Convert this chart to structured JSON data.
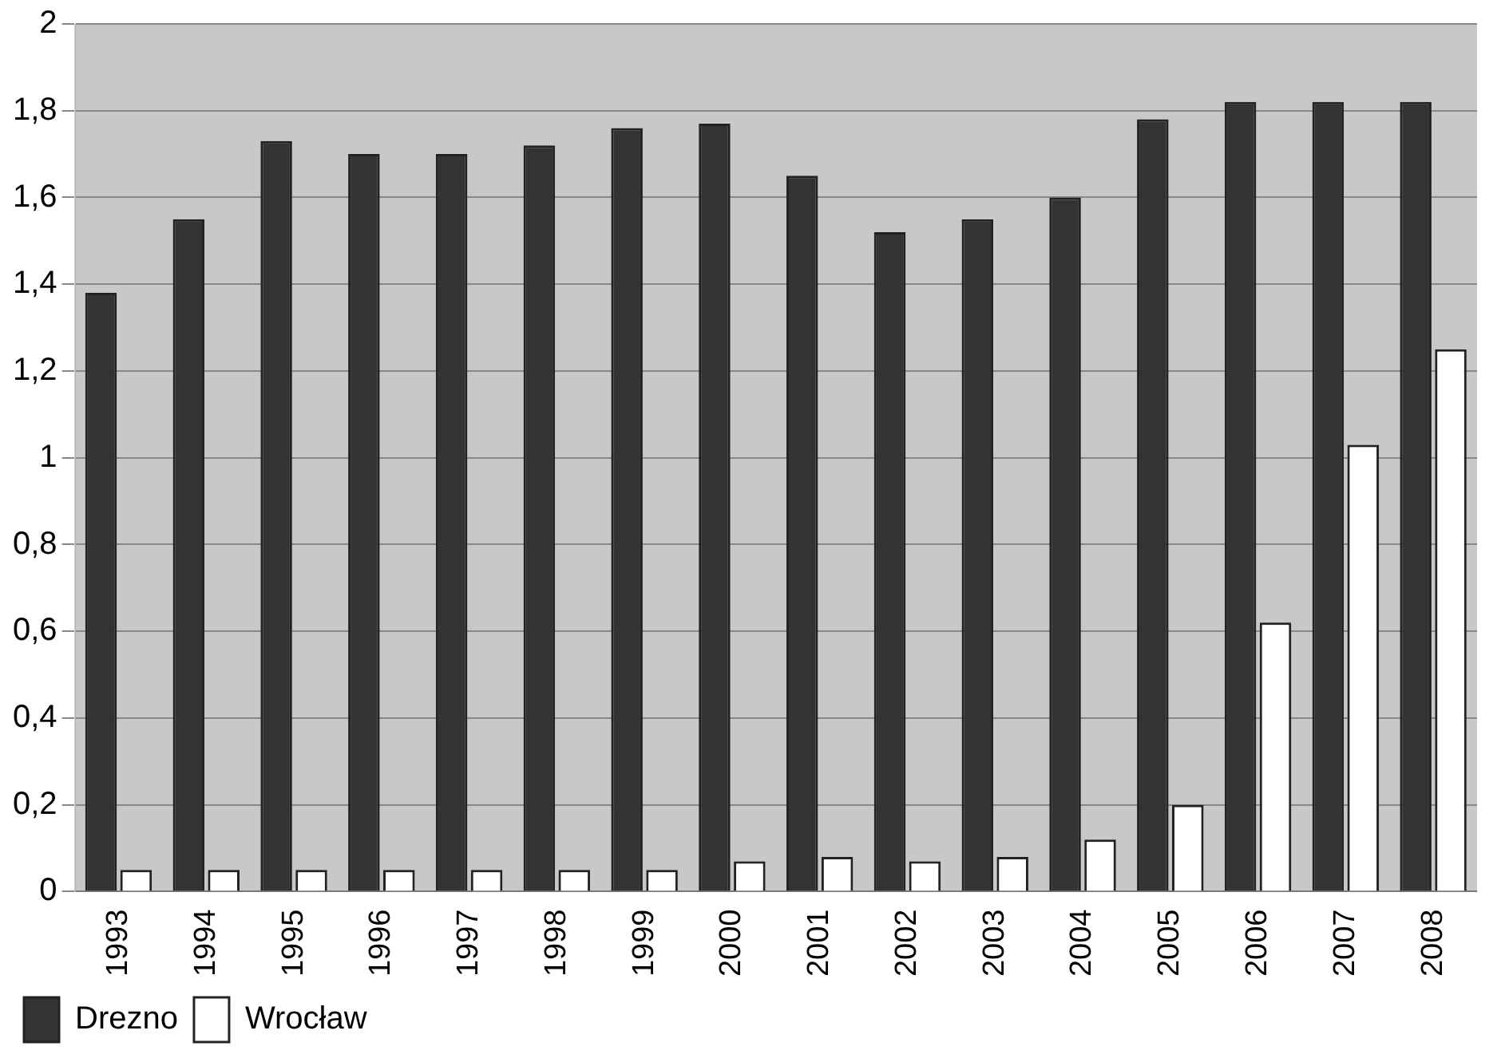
{
  "chart_data": {
    "type": "bar",
    "categories": [
      "1993",
      "1994",
      "1995",
      "1996",
      "1997",
      "1998",
      "1999",
      "2000",
      "2001",
      "2002",
      "2003",
      "2004",
      "2005",
      "2006",
      "2007",
      "2008"
    ],
    "series": [
      {
        "name": "Drezno",
        "color": "#333333",
        "values": [
          1.38,
          1.55,
          1.73,
          1.7,
          1.7,
          1.72,
          1.76,
          1.77,
          1.65,
          1.52,
          1.55,
          1.6,
          1.78,
          1.82,
          1.82,
          1.82
        ]
      },
      {
        "name": "Wrocław",
        "color": "#ffffff",
        "values": [
          0.05,
          0.05,
          0.05,
          0.05,
          0.05,
          0.05,
          0.05,
          0.07,
          0.08,
          0.07,
          0.08,
          0.12,
          0.2,
          0.62,
          1.03,
          1.25
        ]
      }
    ],
    "ylim": [
      0,
      2
    ],
    "yticks": [
      0,
      {
        "value": 0.2,
        "label": "0,2"
      },
      {
        "value": 0.4,
        "label": "0,4"
      },
      {
        "value": 0.6,
        "label": "0,6"
      },
      {
        "value": 0.8,
        "label": "0,8"
      },
      1,
      {
        "value": 1.2,
        "label": "1,2"
      },
      {
        "value": 1.4,
        "label": "1,4"
      },
      {
        "value": 1.6,
        "label": "1,6"
      },
      {
        "value": 1.8,
        "label": "1,8"
      },
      2
    ],
    "grid": "y",
    "legend": "bottom left"
  }
}
